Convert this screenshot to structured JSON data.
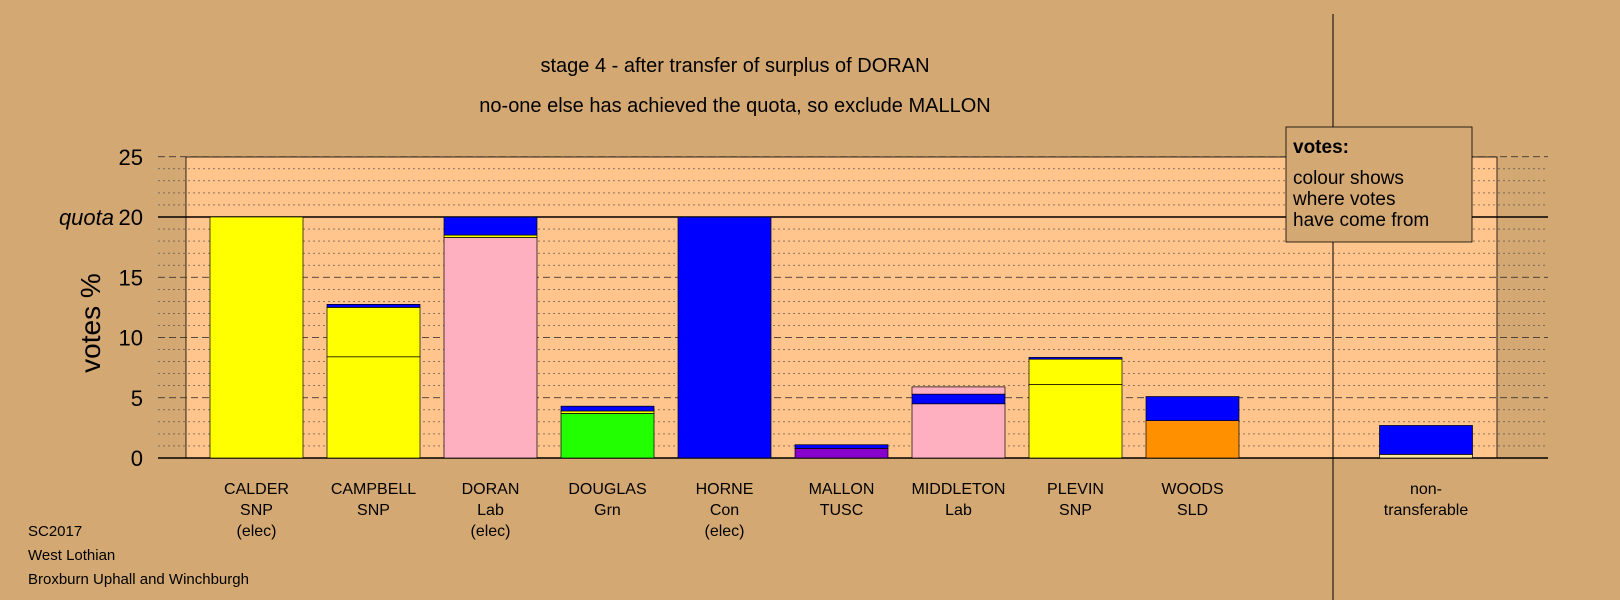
{
  "colors": {
    "background": "#d4a873",
    "plot_bg": "#ffc58c",
    "SNP": "#ffff00",
    "Lab": "#ffb0c0",
    "Grn": "#22ff00",
    "Con": "#0000ff",
    "TUSC": "#8800cc",
    "SLD": "#ff9000",
    "nontransfer": "#ffe8a0"
  },
  "chart_data": {
    "type": "bar",
    "stacked": true,
    "title": "stage 4 - after transfer of surplus of DORAN",
    "subtitle": "no-one else has achieved the quota, so exclude MALLON",
    "ylabel": "votes %",
    "quota_label": "quota",
    "quota": 20,
    "ylim": [
      0,
      25
    ],
    "yticks": [
      0,
      5,
      10,
      15,
      20,
      25
    ],
    "legend": {
      "title": "votes:",
      "lines": [
        "colour shows",
        "where votes",
        "have come from"
      ]
    },
    "candidates": [
      {
        "name": "CALDER",
        "party": "SNP",
        "status": "(elec)",
        "segments": [
          {
            "from": "SNP",
            "value": 20
          }
        ]
      },
      {
        "name": "CAMPBELL",
        "party": "SNP",
        "status": "",
        "segments": [
          {
            "from": "SNP",
            "value": 8.4
          },
          {
            "from": "SNP",
            "value": 4.1
          },
          {
            "from": "Con",
            "value": 0.25
          }
        ]
      },
      {
        "name": "DORAN",
        "party": "Lab",
        "status": "(elec)",
        "segments": [
          {
            "from": "Lab",
            "value": 18.3
          },
          {
            "from": "SNP",
            "value": 0.2
          },
          {
            "from": "Con",
            "value": 1.5
          }
        ]
      },
      {
        "name": "DOUGLAS",
        "party": "Grn",
        "status": "",
        "segments": [
          {
            "from": "Grn",
            "value": 3.7
          },
          {
            "from": "SNP",
            "value": 0.2
          },
          {
            "from": "Con",
            "value": 0.4
          }
        ]
      },
      {
        "name": "HORNE",
        "party": "Con",
        "status": "(elec)",
        "segments": [
          {
            "from": "Con",
            "value": 20
          }
        ]
      },
      {
        "name": "MALLON",
        "party": "TUSC",
        "status": "",
        "segments": [
          {
            "from": "TUSC",
            "value": 0.8
          },
          {
            "from": "Con",
            "value": 0.3
          }
        ]
      },
      {
        "name": "MIDDLETON",
        "party": "Lab",
        "status": "",
        "segments": [
          {
            "from": "Lab",
            "value": 4.5
          },
          {
            "from": "Con",
            "value": 0.8
          },
          {
            "from": "Lab",
            "value": 0.6
          }
        ]
      },
      {
        "name": "PLEVIN",
        "party": "SNP",
        "status": "",
        "segments": [
          {
            "from": "SNP",
            "value": 6.1
          },
          {
            "from": "SNP",
            "value": 2.1
          },
          {
            "from": "Con",
            "value": 0.15
          }
        ]
      },
      {
        "name": "WOODS",
        "party": "SLD",
        "status": "",
        "segments": [
          {
            "from": "SLD",
            "value": 3.1
          },
          {
            "from": "Con",
            "value": 2.0
          }
        ]
      }
    ],
    "nontransferable": {
      "name": "non-",
      "party": "transferable",
      "segments": [
        {
          "from": "nontransfer",
          "value": 0.3
        },
        {
          "from": "Con",
          "value": 2.4
        }
      ]
    }
  },
  "footer": {
    "election": "SC2017",
    "council": "West Lothian",
    "ward": "Broxburn Uphall and Winchburgh"
  }
}
